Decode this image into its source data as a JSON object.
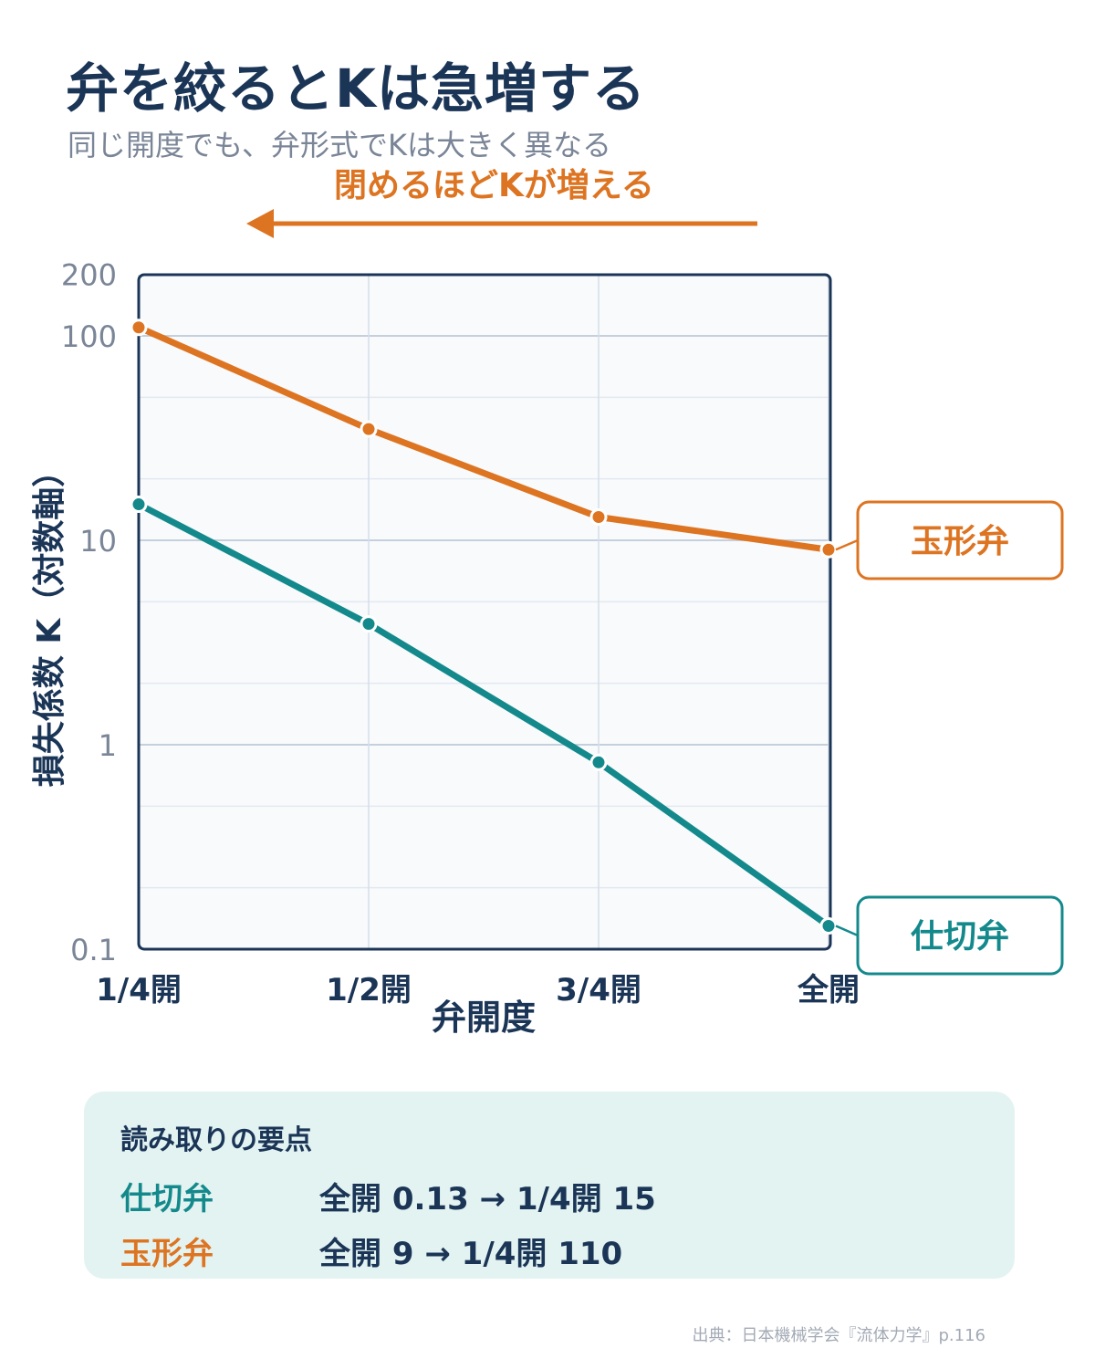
{
  "header": {
    "title": "弁を絞るとKは急増する",
    "subtitle": "同じ開度でも、弁形式でKは大きく異なる"
  },
  "annotation": {
    "arrow_label": "閉めるほどKが増える",
    "arrow_direction": "left"
  },
  "colors": {
    "navy": "#1b3557",
    "orange": "#dd7422",
    "teal": "#14898c",
    "plot_bg": "#f8fafc",
    "grid": "#c5d0dc",
    "muted": "#7a8597",
    "summary_bg": "#e3f3f1"
  },
  "chart_data": {
    "type": "line",
    "ylabel": "損失係数 K（対数軸）",
    "xlabel": "弁開度",
    "categories": [
      "1/4開",
      "1/2開",
      "3/4開",
      "全開"
    ],
    "y_scale": "log",
    "ylim": [
      0.1,
      200
    ],
    "y_ticks": [
      "200",
      "100",
      "10",
      "1",
      "0.1"
    ],
    "y_tick_values": [
      200,
      100,
      10,
      1,
      0.1
    ],
    "grid": true,
    "series": [
      {
        "name": "玉形弁",
        "color": "#dd7422",
        "values": [
          110,
          35,
          13,
          9
        ]
      },
      {
        "name": "仕切弁",
        "color": "#14898c",
        "values": [
          15,
          3.9,
          0.82,
          0.13
        ]
      }
    ]
  },
  "summary": {
    "title": "読み取りの要点",
    "rows": [
      {
        "name": "仕切弁",
        "text": "全開 0.13 → 1/4開 15",
        "color": "#14898c"
      },
      {
        "name": "玉形弁",
        "text": "全開 9 → 1/4開 110",
        "color": "#dd7422"
      }
    ]
  },
  "source": "出典：日本機械学会『流体力学』p.116"
}
